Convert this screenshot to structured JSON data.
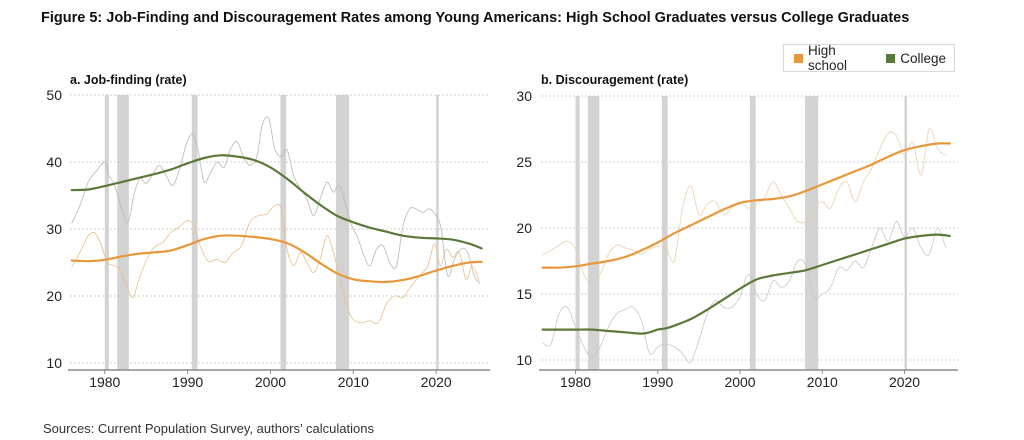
{
  "figure": {
    "title": "Figure 5: Job-Finding and Discouragement Rates among Young Americans: High School Graduates versus College Graduates",
    "source": "Sources: Current Population Survey, authors’ calculations",
    "legend": [
      {
        "label": "High school",
        "color": "#E8973A"
      },
      {
        "label": "College",
        "color": "#5B7A3A"
      }
    ]
  },
  "chart_data": [
    {
      "type": "line",
      "title": "a. Job-finding (rate)",
      "xlabel": "",
      "ylabel": "",
      "xlim": [
        1975.8,
        2026.5
      ],
      "ylim": [
        9.5,
        50
      ],
      "yticks": [
        10,
        20,
        30,
        40,
        50
      ],
      "xticks": [
        1980,
        1990,
        2000,
        2010,
        2020
      ],
      "grid": "horizontal-dotted",
      "recessions": [
        [
          1980.0,
          1980.5
        ],
        [
          1981.5,
          1982.9
        ],
        [
          1990.5,
          1991.2
        ],
        [
          2001.2,
          2001.9
        ],
        [
          2007.9,
          2009.5
        ],
        [
          2020.0,
          2020.3
        ]
      ],
      "series": [
        {
          "name": "High school (trend)",
          "color": "#E8973A",
          "role": "trend",
          "x": [
            1976,
            1978,
            1980,
            1982,
            1984,
            1986,
            1988,
            1990,
            1992,
            1994,
            1996,
            1998,
            2000,
            2002,
            2004,
            2006,
            2008,
            2010,
            2012,
            2014,
            2016,
            2018,
            2020,
            2022,
            2024,
            2025.5
          ],
          "values": [
            25.3,
            25.2,
            25.4,
            25.9,
            26.3,
            26.5,
            26.8,
            27.6,
            28.5,
            29.0,
            29.0,
            28.8,
            28.5,
            27.9,
            26.6,
            24.9,
            23.4,
            22.5,
            22.2,
            22.1,
            22.4,
            23.0,
            23.8,
            24.5,
            25.0,
            25.1
          ]
        },
        {
          "name": "College (trend)",
          "color": "#5B7A3A",
          "role": "trend",
          "x": [
            1976,
            1978,
            1980,
            1982,
            1984,
            1986,
            1988,
            1990,
            1992,
            1994,
            1996,
            1998,
            2000,
            2002,
            2004,
            2006,
            2008,
            2010,
            2012,
            2014,
            2016,
            2018,
            2020,
            2022,
            2024,
            2025.5
          ],
          "values": [
            35.8,
            35.9,
            36.4,
            37.0,
            37.6,
            38.2,
            38.9,
            39.8,
            40.6,
            41.0,
            40.8,
            40.3,
            39.2,
            37.5,
            35.5,
            33.6,
            32.0,
            31.0,
            30.2,
            29.6,
            29.0,
            28.7,
            28.6,
            28.4,
            27.8,
            27.1
          ]
        },
        {
          "name": "High school (raw)",
          "color": "#E8C08A",
          "role": "raw",
          "x": [
            1976,
            1977,
            1978,
            1978.8,
            1979.5,
            1980.3,
            1981,
            1981.8,
            1982.6,
            1983.4,
            1984,
            1985,
            1986,
            1987,
            1988,
            1989,
            1990,
            1990.8,
            1991.5,
            1992.5,
            1993.5,
            1994.5,
            1995.5,
            1996.5,
            1997.5,
            1998.5,
            1999.5,
            2000.5,
            2001.3,
            2002,
            2002.8,
            2003.6,
            2004.4,
            2005.2,
            2006,
            2006.8,
            2007.6,
            2008.5,
            2009.2,
            2010,
            2011,
            2012,
            2013,
            2014,
            2015,
            2016,
            2017,
            2018,
            2019,
            2019.8,
            2020.5,
            2021.2,
            2022,
            2022.8,
            2023.6,
            2024.4,
            2025.2
          ],
          "values": [
            24.3,
            26.5,
            29.0,
            29.4,
            27.8,
            25.0,
            24.6,
            24.0,
            21.5,
            19.7,
            22.0,
            25.3,
            27.3,
            28.0,
            29.5,
            30.3,
            31.3,
            30.5,
            27.5,
            25.2,
            25.5,
            25.0,
            26.5,
            27.5,
            31.0,
            32.0,
            32.2,
            33.5,
            33.0,
            27.0,
            24.5,
            26.5,
            25.0,
            23.5,
            25.5,
            29.0,
            26.5,
            22.0,
            18.5,
            16.5,
            16.0,
            16.3,
            16.0,
            18.8,
            20.0,
            19.8,
            21.5,
            23.0,
            24.5,
            27.8,
            24.5,
            27.0,
            25.8,
            26.5,
            22.5,
            24.5,
            22.2
          ]
        },
        {
          "name": "College (raw)",
          "color": "#B8B8B8",
          "role": "raw",
          "x": [
            1976,
            1977,
            1978,
            1979,
            1980,
            1980.5,
            1981.2,
            1982,
            1982.8,
            1983.5,
            1984.2,
            1985,
            1985.8,
            1986.6,
            1987.4,
            1988.2,
            1989,
            1989.8,
            1990.6,
            1991.3,
            1992,
            1992.8,
            1993.6,
            1994.4,
            1995.2,
            1996,
            1996.8,
            1997.6,
            1998.4,
            1999,
            1999.8,
            2000.5,
            2001.3,
            2002,
            2002.8,
            2003.6,
            2004.4,
            2005.2,
            2006,
            2006.8,
            2007.6,
            2008.3,
            2009,
            2009.8,
            2010.5,
            2011.3,
            2012,
            2012.8,
            2013.6,
            2014.4,
            2015.2,
            2016,
            2016.8,
            2017.6,
            2018.4,
            2019.2,
            2020,
            2020.6,
            2021.4,
            2022.2,
            2023,
            2023.8,
            2024.6,
            2025.3
          ],
          "values": [
            30.8,
            33.5,
            37.0,
            38.7,
            40.0,
            38.0,
            36.5,
            33.2,
            31.0,
            35.0,
            37.5,
            36.8,
            38.2,
            39.5,
            38.0,
            36.5,
            38.8,
            42.5,
            44.2,
            41.5,
            37.0,
            38.5,
            40.0,
            39.2,
            42.0,
            43.0,
            40.5,
            39.5,
            41.0,
            45.5,
            46.5,
            42.0,
            40.8,
            41.8,
            38.0,
            36.0,
            34.5,
            32.0,
            34.5,
            37.0,
            35.5,
            36.5,
            34.0,
            30.5,
            28.8,
            26.0,
            24.5,
            27.0,
            27.5,
            25.0,
            24.5,
            30.5,
            33.0,
            33.0,
            32.5,
            33.0,
            32.0,
            30.0,
            23.0,
            25.5,
            27.0,
            26.5,
            23.0,
            21.8
          ]
        }
      ]
    },
    {
      "type": "line",
      "title": "b. Discouragement (rate)",
      "xlabel": "",
      "ylabel": "",
      "xlim": [
        1975.8,
        2026.5
      ],
      "ylim": [
        9.2,
        30
      ],
      "yticks": [
        10,
        15,
        20,
        25,
        30
      ],
      "xticks": [
        1980,
        1990,
        2000,
        2010,
        2020
      ],
      "grid": "horizontal-dotted",
      "recessions": [
        [
          1980.0,
          1980.5
        ],
        [
          1981.5,
          1982.9
        ],
        [
          1990.5,
          1991.2
        ],
        [
          2001.2,
          2001.9
        ],
        [
          2007.9,
          2009.5
        ],
        [
          2020.0,
          2020.3
        ]
      ],
      "series": [
        {
          "name": "High school (trend)",
          "color": "#E8973A",
          "role": "trend",
          "x": [
            1976,
            1978,
            1980,
            1982,
            1984,
            1986,
            1988,
            1990,
            1992,
            1994,
            1996,
            1998,
            2000,
            2002,
            2004,
            2006,
            2008,
            2010,
            2012,
            2014,
            2016,
            2018,
            2020,
            2022,
            2024,
            2025.5
          ],
          "values": [
            17.0,
            17.0,
            17.1,
            17.3,
            17.5,
            17.8,
            18.3,
            18.9,
            19.6,
            20.2,
            20.8,
            21.4,
            21.9,
            22.1,
            22.2,
            22.4,
            22.8,
            23.3,
            23.8,
            24.3,
            24.8,
            25.4,
            25.9,
            26.2,
            26.4,
            26.4
          ]
        },
        {
          "name": "College (trend)",
          "color": "#5B7A3A",
          "role": "trend",
          "x": [
            1976,
            1978,
            1980,
            1982,
            1984,
            1986,
            1988,
            1989,
            1990,
            1991,
            1992,
            1994,
            1996,
            1998,
            2000,
            2002,
            2004,
            2006,
            2008,
            2010,
            2012,
            2014,
            2016,
            2018,
            2020,
            2022,
            2024,
            2025.5
          ],
          "values": [
            12.3,
            12.3,
            12.3,
            12.3,
            12.2,
            12.1,
            12.0,
            12.1,
            12.3,
            12.4,
            12.6,
            13.1,
            13.8,
            14.6,
            15.4,
            16.1,
            16.4,
            16.6,
            16.8,
            17.2,
            17.6,
            18.0,
            18.4,
            18.8,
            19.2,
            19.4,
            19.5,
            19.4
          ]
        },
        {
          "name": "High school (raw)",
          "color": "#E8D2B0",
          "role": "raw",
          "x": [
            1976,
            1977,
            1978,
            1979,
            1980,
            1981,
            1982,
            1983,
            1984,
            1985,
            1986,
            1987,
            1988,
            1989,
            1990,
            1991,
            1992,
            1993,
            1994,
            1995,
            1996,
            1997,
            1998,
            1999,
            2000,
            2001,
            2002,
            2003,
            2004,
            2005,
            2006,
            2007,
            2008,
            2009,
            2010,
            2011,
            2012,
            2013,
            2014,
            2015,
            2016,
            2017,
            2018,
            2019,
            2020,
            2021,
            2022,
            2023,
            2024,
            2025
          ],
          "values": [
            18.0,
            18.3,
            18.7,
            19.0,
            18.4,
            16.5,
            15.8,
            16.5,
            18.0,
            18.7,
            18.5,
            18.3,
            18.0,
            18.4,
            18.6,
            18.5,
            17.5,
            21.5,
            23.2,
            21.0,
            21.8,
            22.0,
            21.0,
            21.5,
            22.0,
            21.5,
            21.8,
            22.3,
            23.5,
            22.5,
            21.5,
            20.5,
            20.5,
            21.5,
            22.0,
            21.5,
            23.0,
            23.5,
            22.0,
            23.5,
            24.5,
            26.0,
            27.2,
            27.0,
            25.5,
            26.5,
            24.0,
            27.5,
            26.0,
            25.5
          ]
        },
        {
          "name": "College (raw)",
          "color": "#C8C8C8",
          "role": "raw",
          "x": [
            1976,
            1977,
            1978,
            1979,
            1980,
            1981,
            1982,
            1983,
            1984,
            1985,
            1986,
            1987,
            1988,
            1989,
            1990,
            1991,
            1992,
            1993,
            1994,
            1995,
            1996,
            1997,
            1998,
            1999,
            2000,
            2001,
            2002,
            2003,
            2004,
            2005,
            2006,
            2007,
            2008,
            2009,
            2010,
            2011,
            2012,
            2013,
            2014,
            2015,
            2016,
            2017,
            2018,
            2019,
            2020,
            2021,
            2022,
            2023,
            2024,
            2025
          ],
          "values": [
            11.3,
            11.2,
            13.5,
            14.0,
            12.5,
            11.0,
            10.2,
            11.0,
            12.5,
            13.5,
            13.8,
            14.0,
            13.0,
            10.5,
            11.0,
            11.2,
            11.0,
            10.5,
            9.8,
            11.5,
            13.5,
            14.5,
            14.0,
            14.0,
            14.8,
            16.5,
            15.0,
            14.5,
            16.0,
            15.5,
            16.0,
            17.5,
            17.2,
            14.8,
            15.0,
            15.5,
            17.0,
            16.8,
            17.5,
            17.0,
            18.5,
            20.0,
            19.0,
            20.5,
            19.3,
            20.0,
            18.5,
            18.0,
            20.0,
            18.5
          ]
        }
      ]
    }
  ]
}
